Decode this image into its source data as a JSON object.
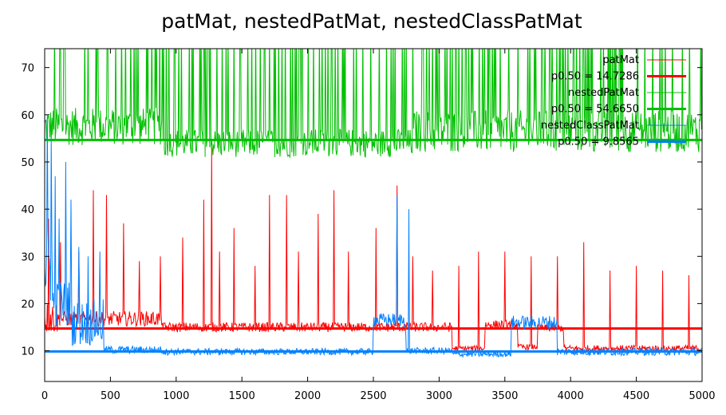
{
  "chart_data": {
    "type": "line",
    "title": "patMat, nestedPatMat, nestedClassPatMat",
    "xlabel": "",
    "ylabel": "",
    "xlim": [
      0,
      5000
    ],
    "ylim": [
      3.5,
      74
    ],
    "xticks": [
      0,
      500,
      1000,
      1500,
      2000,
      2500,
      3000,
      3500,
      4000,
      4500,
      5000
    ],
    "yticks": [
      10,
      20,
      30,
      40,
      50,
      60,
      70
    ],
    "grid": false,
    "legend_position": "top-right",
    "series": [
      {
        "name": "patMat",
        "color": "#ff0000",
        "median_label": "p0.50 = 14.7286",
        "median": 14.7286,
        "segments": [
          {
            "x_start": 0,
            "x_end": 100,
            "base": 17.0,
            "noise": 3.5
          },
          {
            "x_start": 100,
            "x_end": 900,
            "base": 16.8,
            "noise": 1.6
          },
          {
            "x_start": 900,
            "x_end": 3100,
            "base": 15.0,
            "noise": 1.0
          },
          {
            "x_start": 3100,
            "x_end": 3350,
            "base": 10.5,
            "noise": 0.6
          },
          {
            "x_start": 3350,
            "x_end": 3600,
            "base": 15.5,
            "noise": 1.0
          },
          {
            "x_start": 3600,
            "x_end": 3750,
            "base": 10.8,
            "noise": 0.6
          },
          {
            "x_start": 3750,
            "x_end": 3950,
            "base": 14.8,
            "noise": 0.8
          },
          {
            "x_start": 3950,
            "x_end": 5000,
            "base": 10.5,
            "noise": 0.7
          }
        ],
        "spikes": [
          [
            30,
            38
          ],
          [
            120,
            33
          ],
          [
            260,
            31
          ],
          [
            370,
            44
          ],
          [
            470,
            43
          ],
          [
            600,
            37
          ],
          [
            720,
            29
          ],
          [
            880,
            30
          ],
          [
            1050,
            34
          ],
          [
            1210,
            42
          ],
          [
            1270,
            53
          ],
          [
            1330,
            31
          ],
          [
            1440,
            36
          ],
          [
            1600,
            28
          ],
          [
            1710,
            43
          ],
          [
            1840,
            43
          ],
          [
            1930,
            31
          ],
          [
            2080,
            39
          ],
          [
            2200,
            44
          ],
          [
            2310,
            31
          ],
          [
            2520,
            36
          ],
          [
            2680,
            45
          ],
          [
            2800,
            30
          ],
          [
            2950,
            27
          ],
          [
            3150,
            28
          ],
          [
            3300,
            31
          ],
          [
            3500,
            31
          ],
          [
            3700,
            30
          ],
          [
            3900,
            30
          ],
          [
            4100,
            33
          ],
          [
            4300,
            27
          ],
          [
            4500,
            28
          ],
          [
            4700,
            27
          ],
          [
            4900,
            26
          ]
        ]
      },
      {
        "name": "nestedPatMat",
        "color": "#00c000",
        "median_label": "p0.50 = 54.6650",
        "median": 54.665,
        "segments": [
          {
            "x_start": 0,
            "x_end": 900,
            "base": 57.5,
            "noise": 4.0
          },
          {
            "x_start": 900,
            "x_end": 2800,
            "base": 54.0,
            "noise": 3.0
          },
          {
            "x_start": 2800,
            "x_end": 5000,
            "base": 56.5,
            "noise": 4.5
          }
        ],
        "upper_clip": 74
      },
      {
        "name": "nestedClassPatMat",
        "color": "#0080ff",
        "median_label": "p0.50 = 9.8565",
        "median": 9.8565,
        "segments": [
          {
            "x_start": 0,
            "x_end": 60,
            "base": 28.0,
            "noise": 9.0
          },
          {
            "x_start": 60,
            "x_end": 200,
            "base": 20.0,
            "noise": 5.0
          },
          {
            "x_start": 200,
            "x_end": 450,
            "base": 16.0,
            "noise": 5.0
          },
          {
            "x_start": 450,
            "x_end": 900,
            "base": 10.2,
            "noise": 0.8
          },
          {
            "x_start": 900,
            "x_end": 2500,
            "base": 9.8,
            "noise": 0.7
          },
          {
            "x_start": 2500,
            "x_end": 2750,
            "base": 16.5,
            "noise": 1.5
          },
          {
            "x_start": 2750,
            "x_end": 3100,
            "base": 10.0,
            "noise": 0.7
          },
          {
            "x_start": 3100,
            "x_end": 3550,
            "base": 9.3,
            "noise": 0.6
          },
          {
            "x_start": 3550,
            "x_end": 3900,
            "base": 16.0,
            "noise": 1.5
          },
          {
            "x_start": 3900,
            "x_end": 5000,
            "base": 9.8,
            "noise": 0.8
          }
        ],
        "spikes": [
          [
            20,
            60
          ],
          [
            50,
            55
          ],
          [
            80,
            47
          ],
          [
            110,
            38
          ],
          [
            160,
            50
          ],
          [
            200,
            42
          ],
          [
            260,
            32
          ],
          [
            330,
            30
          ],
          [
            420,
            31
          ],
          [
            2680,
            43
          ],
          [
            2770,
            40
          ]
        ]
      }
    ],
    "legend": [
      {
        "text": "patMat",
        "color": "#ff0000",
        "width": 1
      },
      {
        "text": "p0.50 = 14.7286",
        "color": "#ff0000",
        "width": 3
      },
      {
        "text": "nestedPatMat",
        "color": "#00c000",
        "width": 1
      },
      {
        "text": "p0.50 = 54.6650",
        "color": "#00c000",
        "width": 3
      },
      {
        "text": "nestedClassPatMat",
        "color": "#0080ff",
        "width": 1
      },
      {
        "text": "p0.50 = 9.8565",
        "color": "#0080ff",
        "width": 3
      }
    ]
  }
}
